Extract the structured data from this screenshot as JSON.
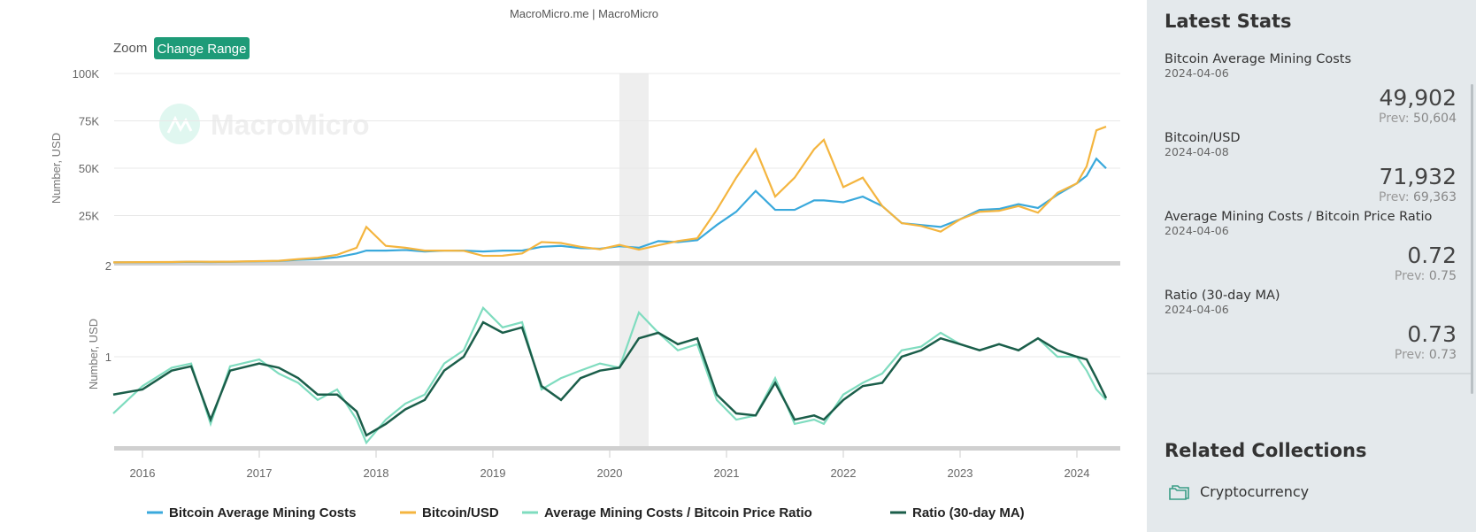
{
  "header": {
    "source": "MacroMicro.me | MacroMicro",
    "zoom_label": "Zoom",
    "change_range_label": "Change Range",
    "watermark": "MacroMicro"
  },
  "chart_data": [
    {
      "type": "line",
      "ylabel": "Number, USD",
      "ylim": [
        0,
        100000
      ],
      "yticks": [
        "25K",
        "50K",
        "75K",
        "100K"
      ],
      "ytick_values": [
        25000,
        50000,
        75000,
        100000
      ],
      "grid": true,
      "x": [
        "2015-10",
        "2016-01",
        "2016-04",
        "2016-06",
        "2016-08",
        "2016-10",
        "2017-01",
        "2017-03",
        "2017-05",
        "2017-07",
        "2017-09",
        "2017-11",
        "2017-12",
        "2018-02",
        "2018-04",
        "2018-06",
        "2018-08",
        "2018-10",
        "2018-12",
        "2019-02",
        "2019-04",
        "2019-06",
        "2019-08",
        "2019-10",
        "2019-12",
        "2020-02",
        "2020-04",
        "2020-06",
        "2020-08",
        "2020-10",
        "2020-12",
        "2021-02",
        "2021-04",
        "2021-06",
        "2021-08",
        "2021-10",
        "2021-11",
        "2022-01",
        "2022-03",
        "2022-05",
        "2022-07",
        "2022-09",
        "2022-11",
        "2023-01",
        "2023-03",
        "2023-05",
        "2023-07",
        "2023-09",
        "2023-11",
        "2024-01",
        "2024-02",
        "2024-03",
        "2024-04"
      ],
      "series": [
        {
          "name": "Bitcoin Average Mining Costs",
          "color": "#3aa9dc",
          "values": [
            250,
            330,
            400,
            600,
            450,
            580,
            850,
            1000,
            1600,
            2000,
            3000,
            5000,
            6500,
            6500,
            6800,
            6000,
            6500,
            6500,
            6000,
            6500,
            6500,
            8500,
            9000,
            7800,
            7500,
            8800,
            8000,
            11500,
            11000,
            12000,
            20000,
            27000,
            38000,
            28000,
            28000,
            33000,
            33000,
            32000,
            35000,
            30000,
            21000,
            20000,
            19000,
            23000,
            28000,
            28500,
            31000,
            29000,
            36000,
            42000,
            46000,
            55000,
            49902
          ]
        },
        {
          "name": "Bitcoin/USD",
          "color": "#f4b53f",
          "values": [
            300,
            420,
            450,
            670,
            580,
            640,
            950,
            1100,
            2000,
            2700,
            4300,
            8000,
            19000,
            9000,
            8000,
            6500,
            6500,
            6400,
            3700,
            3800,
            5000,
            11000,
            10500,
            8500,
            7200,
            9500,
            7000,
            9300,
            11500,
            13000,
            28000,
            45000,
            60000,
            35000,
            45000,
            60000,
            65000,
            40000,
            45000,
            30000,
            21000,
            19500,
            16500,
            23000,
            27000,
            27500,
            30000,
            26500,
            37000,
            42000,
            51000,
            70000,
            71932
          ]
        }
      ]
    },
    {
      "type": "line",
      "ylabel": "Number, USD",
      "yscale": "log",
      "ylim": [
        0.5,
        2
      ],
      "yticks": [
        "1",
        "2"
      ],
      "ytick_values": [
        1,
        2
      ],
      "xticks": [
        "2016",
        "2017",
        "2018",
        "2019",
        "2020",
        "2021",
        "2022",
        "2023",
        "2024"
      ],
      "shaded_range": [
        "2020-02",
        "2020-05"
      ],
      "series": [
        {
          "name": "Average Mining Costs / Bitcoin Price Ratio",
          "color": "#7fdcbf",
          "values": [
            0.65,
            0.8,
            0.92,
            0.95,
            0.6,
            0.93,
            0.98,
            0.88,
            0.82,
            0.72,
            0.78,
            0.62,
            0.52,
            0.62,
            0.7,
            0.75,
            0.95,
            1.05,
            1.45,
            1.25,
            1.3,
            0.78,
            0.85,
            0.9,
            0.95,
            0.92,
            1.4,
            1.2,
            1.05,
            1.1,
            0.72,
            0.62,
            0.64,
            0.85,
            0.6,
            0.62,
            0.6,
            0.75,
            0.82,
            0.88,
            1.05,
            1.08,
            1.2,
            1.1,
            1.05,
            1.1,
            1.05,
            1.15,
            1.0,
            1.0,
            0.9,
            0.78,
            0.72
          ]
        },
        {
          "name": "Ratio (30-day MA)",
          "color": "#1b5e4a",
          "values": [
            0.75,
            0.78,
            0.9,
            0.93,
            0.62,
            0.9,
            0.95,
            0.92,
            0.85,
            0.75,
            0.75,
            0.66,
            0.55,
            0.6,
            0.67,
            0.72,
            0.9,
            1.0,
            1.3,
            1.2,
            1.25,
            0.8,
            0.72,
            0.85,
            0.9,
            0.92,
            1.15,
            1.2,
            1.1,
            1.15,
            0.75,
            0.65,
            0.64,
            0.82,
            0.62,
            0.64,
            0.62,
            0.72,
            0.8,
            0.82,
            1.0,
            1.05,
            1.15,
            1.1,
            1.05,
            1.1,
            1.05,
            1.15,
            1.05,
            1.0,
            0.98,
            0.85,
            0.73
          ]
        }
      ]
    }
  ],
  "legend": [
    "Bitcoin Average Mining Costs",
    "Bitcoin/USD",
    "Average Mining Costs / Bitcoin Price Ratio",
    "Ratio (30-day MA)"
  ],
  "sidebar": {
    "title": "Latest Stats",
    "stats": [
      {
        "label": "Bitcoin Average Mining Costs",
        "date": "2024-04-06",
        "value": "49,902",
        "prev_label": "Prev:",
        "prev": "50,604"
      },
      {
        "label": "Bitcoin/USD",
        "date": "2024-04-08",
        "value": "71,932",
        "prev_label": "Prev:",
        "prev": "69,363"
      },
      {
        "label": "Average Mining Costs / Bitcoin Price Ratio",
        "date": "2024-04-06",
        "value": "0.72",
        "prev_label": "Prev:",
        "prev": "0.75"
      },
      {
        "label": "Ratio (30-day MA)",
        "date": "2024-04-06",
        "value": "0.73",
        "prev_label": "Prev:",
        "prev": "0.73"
      }
    ],
    "related_title": "Related Collections",
    "collections": [
      {
        "label": "Cryptocurrency",
        "icon": "folder-icon"
      }
    ]
  }
}
